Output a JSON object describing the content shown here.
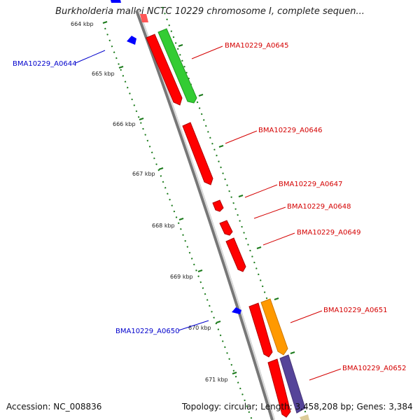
{
  "title": "Burkholderia mallei NCTC 10229 chromosome I, complete sequen...",
  "footer": {
    "accession": "Accession: NC_008836",
    "stats": "Topology: circular; Length: 3,458,208 bp; Genes: 3,384"
  },
  "kbp_ticks": [
    "664 kbp",
    "665 kbp",
    "666 kbp",
    "667 kbp",
    "668 kbp",
    "669 kbp",
    "670 kbp",
    "671 kbp"
  ],
  "gene_labels": [
    {
      "text": "BMA10229_A0644",
      "strand": "reverse",
      "color": "#0000cc"
    },
    {
      "text": "BMA10229_A0645",
      "strand": "forward",
      "color": "#d40000"
    },
    {
      "text": "BMA10229_A0646",
      "strand": "forward",
      "color": "#d40000"
    },
    {
      "text": "BMA10229_A0647",
      "strand": "forward",
      "color": "#d40000"
    },
    {
      "text": "BMA10229_A0648",
      "strand": "forward",
      "color": "#d40000"
    },
    {
      "text": "BMA10229_A0649",
      "strand": "forward",
      "color": "#d40000"
    },
    {
      "text": "BMA10229_A0650",
      "strand": "reverse",
      "color": "#0000cc"
    },
    {
      "text": "BMA10229_A0651",
      "strand": "forward",
      "color": "#d40000"
    },
    {
      "text": "BMA10229_A0652",
      "strand": "forward",
      "color": "#d40000"
    }
  ],
  "colors": {
    "backbone": "#8a8a8a",
    "cds_forward": "#ff0000",
    "cds_reverse": "#0000ff",
    "cog_green": "#33cc33",
    "cog_orange": "#ff9900",
    "cog_purple": "#554499",
    "tick_green": "#1a7a1a"
  }
}
